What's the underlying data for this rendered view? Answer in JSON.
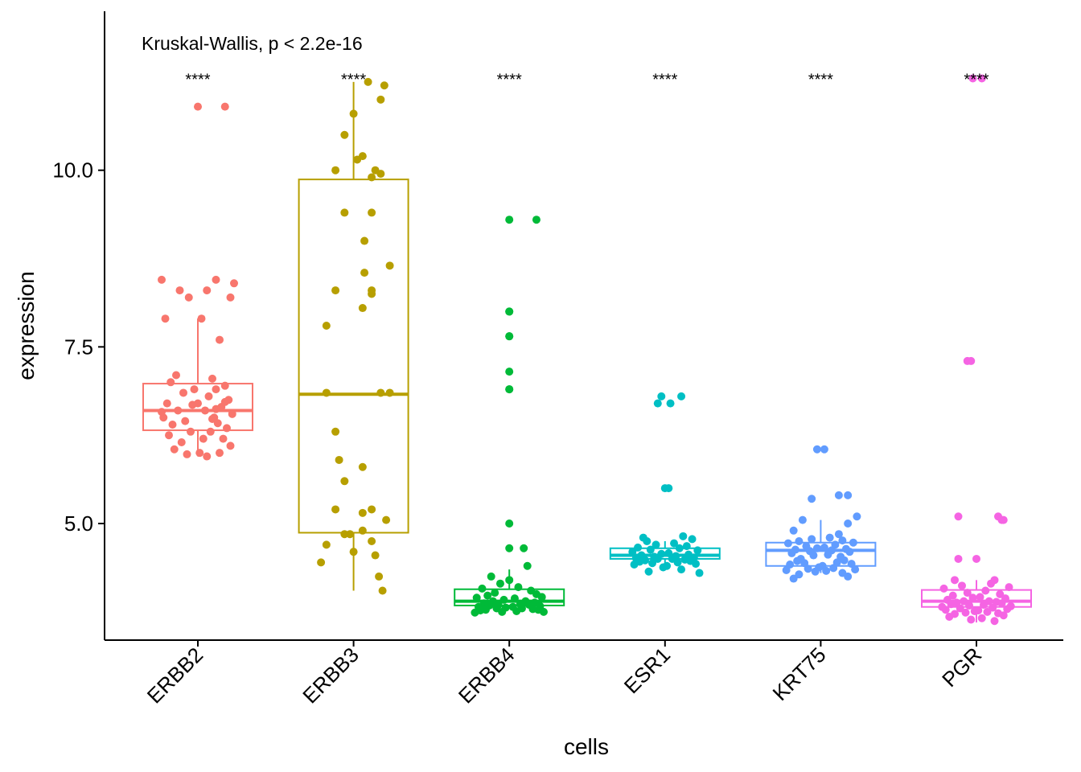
{
  "chart_data": {
    "type": "boxplot",
    "test_annotation": "Kruskal-Wallis, p < 2.2e-16",
    "xlabel": "cells",
    "ylabel": "expression",
    "ylim": [
      3.35,
      12.25
    ],
    "yticks": [
      5.0,
      7.5,
      10.0
    ],
    "ytick_labels": [
      "5.0",
      "7.5",
      "10.0"
    ],
    "grid": false,
    "legend": "none",
    "categories": [
      "ERBB2",
      "ERBB3",
      "ERBB4",
      "ESR1",
      "KRT75",
      "PGR"
    ],
    "colors": [
      "#F8766D",
      "#B79F00",
      "#00BA38",
      "#00BFC4",
      "#619CFF",
      "#F564E3"
    ],
    "significance_labels": [
      "****",
      "****",
      "****",
      "****",
      "****",
      "****"
    ],
    "significance_y": 11.3,
    "boxes": [
      {
        "category": "ERBB2",
        "min": 5.95,
        "q1": 6.32,
        "median": 6.6,
        "q3": 6.98,
        "max": 7.9
      },
      {
        "category": "ERBB3",
        "min": 4.05,
        "q1": 4.87,
        "median": 6.83,
        "q3": 9.87,
        "max": 11.25
      },
      {
        "category": "ERBB4",
        "min": 3.8,
        "q1": 3.84,
        "median": 3.9,
        "q3": 4.07,
        "max": 4.35
      },
      {
        "category": "ESR1",
        "min": 4.4,
        "q1": 4.5,
        "median": 4.55,
        "q3": 4.65,
        "max": 4.75
      },
      {
        "category": "KRT75",
        "min": 4.3,
        "q1": 4.4,
        "median": 4.62,
        "q3": 4.73,
        "max": 5.05
      },
      {
        "category": "PGR",
        "min": 3.6,
        "q1": 3.82,
        "median": 3.9,
        "q3": 4.06,
        "max": 4.2
      }
    ],
    "points": [
      {
        "category": "ERBB2",
        "jitter": [
          0.0,
          0.15,
          -0.2,
          0.1,
          -0.1,
          0.05,
          0.18,
          -0.05,
          0.2,
          -0.18,
          0.02,
          0.12,
          -0.12,
          0.08,
          -0.15,
          0.15,
          -0.02,
          0.1,
          -0.08,
          0.06,
          0.17,
          -0.17,
          0.0,
          0.13,
          -0.11,
          0.04,
          0.19,
          -0.19,
          0.09,
          -0.07,
          0.11,
          -0.14,
          0.16,
          -0.04,
          0.07,
          -0.16,
          0.03,
          0.14,
          -0.09,
          0.18,
          -0.13,
          0.01,
          0.12,
          -0.06,
          0.05,
          0.1,
          -0.03,
          0.15,
          -0.2,
          0.08
        ],
        "values": [
          10.9,
          10.9,
          8.45,
          8.45,
          8.3,
          8.3,
          8.2,
          8.2,
          8.4,
          7.9,
          7.9,
          7.6,
          7.1,
          7.05,
          7.0,
          6.95,
          6.9,
          6.9,
          6.85,
          6.8,
          6.75,
          6.7,
          6.7,
          6.65,
          6.6,
          6.6,
          6.55,
          6.5,
          6.5,
          6.45,
          6.42,
          6.4,
          6.35,
          6.3,
          6.3,
          6.25,
          6.2,
          6.2,
          6.15,
          6.1,
          6.05,
          6.0,
          6.0,
          5.98,
          5.95,
          6.62,
          6.68,
          6.72,
          6.58,
          6.48
        ]
      },
      {
        "category": "ERBB3",
        "jitter": [
          0.08,
          0.17,
          0.0,
          0.15,
          -0.05,
          0.05,
          0.12,
          -0.1,
          0.1,
          0.15,
          0.02,
          0.1,
          0.06,
          -0.05,
          0.2,
          0.06,
          0.1,
          -0.1,
          0.1,
          0.05,
          -0.15,
          0.2,
          -0.15,
          0.15,
          -0.1,
          -0.08,
          0.05,
          -0.05,
          -0.1,
          0.1,
          0.05,
          0.18,
          0.05,
          -0.02,
          -0.05,
          0.1,
          -0.15,
          0.0,
          0.12,
          -0.18,
          0.14,
          0.16
        ],
        "values": [
          11.25,
          11.2,
          10.8,
          11.0,
          10.5,
          10.2,
          10.0,
          10.0,
          9.9,
          9.95,
          10.15,
          9.4,
          9.0,
          9.4,
          8.65,
          8.55,
          8.3,
          8.3,
          8.25,
          8.05,
          7.8,
          6.85,
          6.85,
          6.85,
          6.3,
          5.9,
          5.8,
          5.6,
          5.2,
          5.2,
          5.15,
          5.05,
          4.9,
          4.85,
          4.85,
          4.75,
          4.7,
          4.6,
          4.55,
          4.45,
          4.25,
          4.05
        ]
      },
      {
        "category": "ERBB4",
        "jitter": [
          0.0,
          0.15,
          0.0,
          0.0,
          0.0,
          0.0,
          0.0,
          0.0,
          0.0,
          0.0,
          0.1,
          0.0,
          0.08,
          -0.1,
          0.0,
          -0.05,
          0.05,
          -0.15,
          0.12,
          -0.08,
          0.15,
          -0.12,
          0.18,
          -0.18,
          0.03,
          -0.03,
          0.09,
          -0.09,
          0.14,
          -0.14,
          0.06,
          -0.06,
          0.11,
          -0.11,
          0.17,
          -0.17,
          0.02,
          -0.02,
          0.07,
          -0.07,
          0.13,
          -0.13,
          0.16,
          -0.16,
          0.04,
          -0.04,
          0.19,
          -0.19
        ],
        "values": [
          9.3,
          9.3,
          8.0,
          8.0,
          7.65,
          7.65,
          7.15,
          6.9,
          6.9,
          5.0,
          4.4,
          4.65,
          4.65,
          4.25,
          4.2,
          4.15,
          4.1,
          4.08,
          4.05,
          4.02,
          4.0,
          3.98,
          3.96,
          3.95,
          3.94,
          3.92,
          3.9,
          3.9,
          3.88,
          3.87,
          3.86,
          3.85,
          3.85,
          3.84,
          3.83,
          3.82,
          3.82,
          3.81,
          3.8,
          3.8,
          3.79,
          3.78,
          3.78,
          3.77,
          3.76,
          3.75,
          3.75,
          3.74
        ]
      },
      {
        "category": "ESR1",
        "jitter": [
          -0.04,
          0.03,
          0.09,
          -0.02,
          0.02,
          0.0,
          0.1,
          -0.12,
          0.15,
          -0.1,
          0.05,
          -0.05,
          0.12,
          -0.15,
          0.08,
          -0.08,
          0.18,
          -0.18,
          0.02,
          -0.02,
          0.13,
          -0.13,
          0.06,
          -0.06,
          0.16,
          -0.16,
          0.04,
          -0.04,
          0.11,
          -0.11,
          0.14,
          -0.14,
          0.07,
          -0.07,
          0.17,
          -0.17,
          0.01,
          -0.01,
          0.09,
          -0.09,
          0.19
        ],
        "values": [
          6.7,
          6.7,
          6.8,
          6.8,
          5.5,
          5.5,
          4.82,
          4.8,
          4.78,
          4.75,
          4.72,
          4.7,
          4.68,
          4.66,
          4.65,
          4.63,
          4.62,
          4.6,
          4.58,
          4.57,
          4.56,
          4.55,
          4.54,
          4.53,
          4.52,
          4.51,
          4.5,
          4.5,
          4.49,
          4.48,
          4.47,
          4.46,
          4.45,
          4.44,
          4.43,
          4.42,
          4.4,
          4.38,
          4.35,
          4.32,
          4.3
        ]
      },
      {
        "category": "KRT75",
        "jitter": [
          -0.02,
          0.02,
          0.1,
          0.15,
          -0.05,
          0.2,
          -0.1,
          0.15,
          -0.15,
          0.1,
          0.05,
          -0.05,
          0.12,
          -0.12,
          0.18,
          -0.18,
          0.08,
          -0.08,
          0.02,
          -0.02,
          0.14,
          -0.14,
          0.06,
          -0.06,
          0.16,
          -0.16,
          0.04,
          -0.04,
          0.11,
          -0.11,
          0.13,
          -0.13,
          0.09,
          -0.09,
          0.17,
          -0.17,
          0.01,
          -0.01,
          0.07,
          -0.07,
          0.19,
          -0.19,
          0.03,
          -0.03,
          0.12,
          -0.12,
          0.15,
          -0.15
        ],
        "values": [
          6.05,
          6.05,
          5.4,
          5.4,
          5.35,
          5.1,
          5.05,
          5.0,
          4.9,
          4.85,
          4.8,
          4.78,
          4.76,
          4.75,
          4.73,
          4.72,
          4.7,
          4.68,
          4.66,
          4.65,
          4.64,
          4.63,
          4.62,
          4.61,
          4.6,
          4.58,
          4.56,
          4.55,
          4.53,
          4.5,
          4.48,
          4.47,
          4.45,
          4.44,
          4.43,
          4.42,
          4.4,
          4.38,
          4.37,
          4.36,
          4.35,
          4.34,
          4.33,
          4.32,
          4.3,
          4.28,
          4.25,
          4.22
        ]
      },
      {
        "category": "PGR",
        "jitter": [
          -0.02,
          0.03,
          -0.05,
          -0.03,
          0.12,
          -0.1,
          0.15,
          0.14,
          -0.1,
          0.0,
          0.1,
          -0.12,
          0.08,
          -0.08,
          0.18,
          -0.18,
          0.05,
          -0.05,
          0.13,
          -0.13,
          0.02,
          -0.02,
          0.16,
          -0.16,
          0.07,
          -0.07,
          0.11,
          -0.11,
          0.14,
          -0.14,
          0.04,
          -0.04,
          0.19,
          -0.19,
          0.09,
          -0.09,
          0.17,
          -0.17,
          0.01,
          -0.01,
          0.06,
          -0.06,
          0.12,
          -0.12,
          0.15,
          -0.15,
          0.03,
          -0.03,
          0.1
        ],
        "values": [
          11.3,
          11.3,
          7.3,
          7.3,
          5.1,
          5.1,
          5.05,
          5.05,
          4.5,
          4.5,
          4.2,
          4.2,
          4.15,
          4.12,
          4.1,
          4.08,
          4.05,
          4.02,
          4.0,
          3.98,
          3.96,
          3.95,
          3.94,
          3.92,
          3.9,
          3.9,
          3.89,
          3.88,
          3.87,
          3.86,
          3.85,
          3.84,
          3.83,
          3.82,
          3.81,
          3.8,
          3.79,
          3.78,
          3.77,
          3.76,
          3.75,
          3.74,
          3.73,
          3.72,
          3.7,
          3.68,
          3.66,
          3.64,
          3.62
        ]
      }
    ]
  }
}
